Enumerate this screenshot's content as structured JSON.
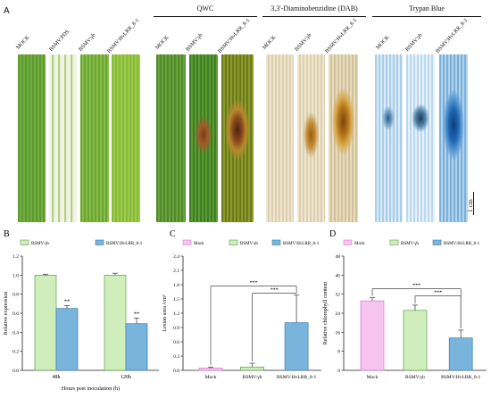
{
  "panel_a": {
    "letter": "A",
    "groups": [
      {
        "title": "QWC",
        "labels": [
          "MOCK",
          "BSMV:γb",
          "BSMV:HvLRR_8-1"
        ]
      },
      {
        "title": "3,3'-Diaminobenzidine (DAB)",
        "labels": [
          "MOCK",
          "BSMV:γb",
          "BSMV:HvLRR_8-1"
        ]
      },
      {
        "title": "Trypan Blue",
        "labels": [
          "MOCK",
          "BSMV:γb",
          "BSMV:HvLRR_8-1"
        ]
      }
    ],
    "first_group_labels": [
      "MOCK",
      "BSMV:PDS",
      "BSMV:γb",
      "BSMV:HvLRR_8-1"
    ],
    "scale_bar": "1 cm"
  },
  "chart_data": [
    {
      "letter": "B",
      "type": "bar",
      "categories": [
        "48h",
        "120h"
      ],
      "series": [
        {
          "name": "BSMV:γb",
          "values": [
            1.0,
            1.0
          ],
          "errors": [
            0.01,
            0.02
          ]
        },
        {
          "name": "BSMV:HvLRR_8-1",
          "values": [
            0.65,
            0.49
          ],
          "errors": [
            0.03,
            0.06
          ]
        }
      ],
      "significance": [
        "**",
        "**"
      ],
      "xlabel": "Hours post inoculation (h)",
      "ylabel": "Relative expression",
      "ylim": [
        0.0,
        1.2
      ],
      "yticks": [
        "0.0",
        "0.2",
        "0.4",
        "0.6",
        "0.8",
        "1.0",
        "1.2"
      ],
      "legend": "top"
    },
    {
      "letter": "C",
      "type": "bar",
      "categories": [
        "Mock",
        "BSMV:γb",
        "BSMV:HvLRR_8-1"
      ],
      "values": [
        0.05,
        0.07,
        1.0
      ],
      "errors": [
        0.02,
        0.08,
        0.58
      ],
      "significance": [
        {
          "from": "Mock",
          "to": "BSMV:HvLRR_8-1",
          "label": "***"
        },
        {
          "from": "BSMV:γb",
          "to": "BSMV:HvLRR_8-1",
          "label": "***"
        }
      ],
      "legend_items": [
        "Mock",
        "BSMV:γb",
        "BSMV:HvLRR_8-1"
      ],
      "ylabel": "Lesion area /cm²",
      "ylim": [
        0.0,
        2.4
      ],
      "yticks": [
        "0.0",
        "0.3",
        "0.6",
        "0.9",
        "1.2",
        "1.5",
        "1.8",
        "2.1",
        "2.4"
      ],
      "legend": "top"
    },
    {
      "letter": "D",
      "type": "bar",
      "categories": [
        "Mock",
        "BSMV:γb",
        "BSMV:HvLRR_8-1"
      ],
      "values": [
        29.2,
        25.2,
        13.6
      ],
      "errors": [
        1.3,
        2.2,
        3.3
      ],
      "significance": [
        {
          "from": "Mock",
          "to": "BSMV:HvLRR_8-1",
          "label": "***"
        },
        {
          "from": "BSMV:γb",
          "to": "BSMV:HvLRR_8-1",
          "label": "***"
        }
      ],
      "legend_items": [
        "Mock",
        "BSMV:γb",
        "BSMV:HvLRR_8-1"
      ],
      "ylabel": "Relative chlorophyll content",
      "ylim": [
        0,
        48
      ],
      "yticks": [
        "0",
        "8",
        "16",
        "24",
        "32",
        "40",
        "48"
      ],
      "legend": "top"
    }
  ],
  "colors": {
    "green_bar": "#cfeebc",
    "green_edge": "#5aa043",
    "blue_bar": "#79b4dc",
    "blue_edge": "#3a7cb0",
    "pink_bar": "#f6c4ef",
    "pink_edge": "#d77ac9",
    "leaf_green": "#6fa53a",
    "leaf_dark": "#3f7a22",
    "dab_base": "#e8ddc3",
    "trypan_base": "#cfe3f2"
  }
}
